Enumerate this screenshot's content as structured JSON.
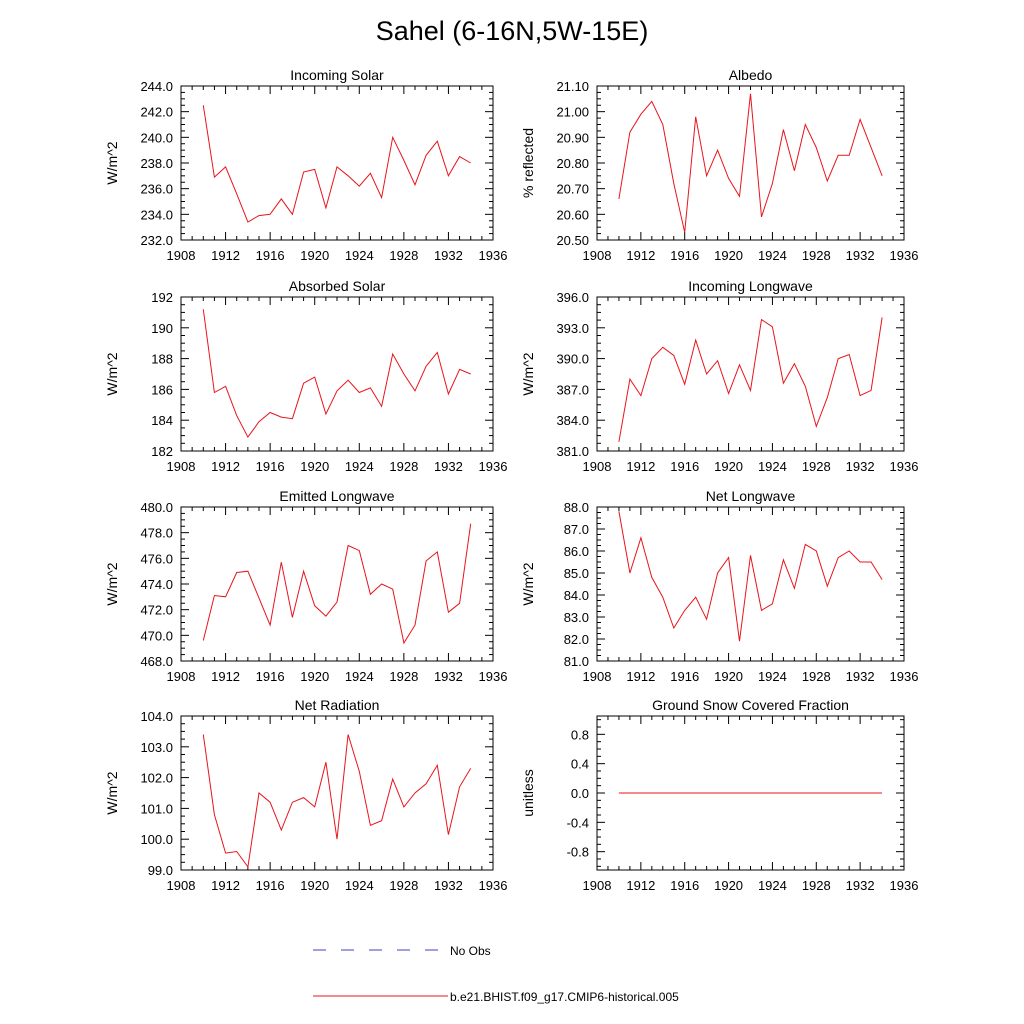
{
  "title": "Sahel (6-16N,5W-15E)",
  "colors": {
    "model": "#e8141c",
    "obs": "#4040c0",
    "axis": "#000000"
  },
  "legend": {
    "obs_label": "No Obs",
    "model_label": "b.e21.BHIST.f09_g17.CMIP6-historical.005"
  },
  "chart_data": [
    {
      "type": "line",
      "title": "Incoming Solar",
      "xlabel": "",
      "ylabel": "W/m^2",
      "xlim": [
        1908,
        1936
      ],
      "ylim": [
        232,
        244
      ],
      "xticks": [
        "1908",
        "1912",
        "1916",
        "1920",
        "1924",
        "1928",
        "1932",
        "1936"
      ],
      "yticks": [
        "232.0",
        "234.0",
        "236.0",
        "238.0",
        "240.0",
        "242.0",
        "244.0"
      ],
      "series": [
        {
          "name": "b.e21.BHIST.f09_g17.CMIP6-historical.005",
          "x": [
            1910,
            1911,
            1912,
            1913,
            1914,
            1915,
            1916,
            1917,
            1918,
            1919,
            1920,
            1921,
            1922,
            1923,
            1924,
            1925,
            1926,
            1927,
            1928,
            1929,
            1930,
            1931,
            1932,
            1933,
            1934
          ],
          "values": [
            242.5,
            236.9,
            237.7,
            235.6,
            233.4,
            233.9,
            234.0,
            235.2,
            234.0,
            237.3,
            237.5,
            234.5,
            237.7,
            237.0,
            236.2,
            237.2,
            235.3,
            240.0,
            238.2,
            236.3,
            238.6,
            239.7,
            237.0,
            238.5,
            238.0
          ]
        }
      ]
    },
    {
      "type": "line",
      "title": "Albedo",
      "xlabel": "",
      "ylabel": "% reflected",
      "xlim": [
        1908,
        1936
      ],
      "ylim": [
        20.5,
        21.1
      ],
      "xticks": [
        "1908",
        "1912",
        "1916",
        "1920",
        "1924",
        "1928",
        "1932",
        "1936"
      ],
      "yticks": [
        "20.50",
        "20.60",
        "20.70",
        "20.80",
        "20.90",
        "21.00",
        "21.10"
      ],
      "series": [
        {
          "name": "b.e21.BHIST.f09_g17.CMIP6-historical.005",
          "x": [
            1910,
            1911,
            1912,
            1913,
            1914,
            1915,
            1916,
            1917,
            1918,
            1919,
            1920,
            1921,
            1922,
            1923,
            1924,
            1925,
            1926,
            1927,
            1928,
            1929,
            1930,
            1931,
            1932,
            1933,
            1934
          ],
          "values": [
            20.66,
            20.92,
            20.99,
            21.04,
            20.95,
            20.72,
            20.53,
            20.98,
            20.75,
            20.85,
            20.74,
            20.67,
            21.07,
            20.59,
            20.72,
            20.93,
            20.77,
            20.95,
            20.86,
            20.73,
            20.83,
            20.83,
            20.97,
            20.86,
            20.75
          ]
        }
      ]
    },
    {
      "type": "line",
      "title": "Absorbed Solar",
      "xlabel": "",
      "ylabel": "W/m^2",
      "xlim": [
        1908,
        1936
      ],
      "ylim": [
        182,
        192
      ],
      "xticks": [
        "1908",
        "1912",
        "1916",
        "1920",
        "1924",
        "1928",
        "1932",
        "1936"
      ],
      "yticks": [
        "182",
        "184",
        "186",
        "188",
        "190",
        "192"
      ],
      "series": [
        {
          "name": "b.e21.BHIST.f09_g17.CMIP6-historical.005",
          "x": [
            1910,
            1911,
            1912,
            1913,
            1914,
            1915,
            1916,
            1917,
            1918,
            1919,
            1920,
            1921,
            1922,
            1923,
            1924,
            1925,
            1926,
            1927,
            1928,
            1929,
            1930,
            1931,
            1932,
            1933,
            1934
          ],
          "values": [
            191.2,
            185.8,
            186.2,
            184.3,
            182.9,
            183.9,
            184.5,
            184.2,
            184.1,
            186.4,
            186.8,
            184.4,
            185.9,
            186.6,
            185.8,
            186.1,
            184.9,
            188.3,
            187.0,
            185.9,
            187.5,
            188.4,
            185.7,
            187.3,
            187.0
          ]
        }
      ]
    },
    {
      "type": "line",
      "title": "Incoming Longwave",
      "xlabel": "",
      "ylabel": "W/m^2",
      "xlim": [
        1908,
        1936
      ],
      "ylim": [
        381,
        396
      ],
      "xticks": [
        "1908",
        "1912",
        "1916",
        "1920",
        "1924",
        "1928",
        "1932",
        "1936"
      ],
      "yticks": [
        "381.0",
        "384.0",
        "387.0",
        "390.0",
        "393.0",
        "396.0"
      ],
      "series": [
        {
          "name": "b.e21.BHIST.f09_g17.CMIP6-historical.005",
          "x": [
            1910,
            1911,
            1912,
            1913,
            1914,
            1915,
            1916,
            1917,
            1918,
            1919,
            1920,
            1921,
            1922,
            1923,
            1924,
            1925,
            1926,
            1927,
            1928,
            1929,
            1930,
            1931,
            1932,
            1933,
            1934
          ],
          "values": [
            381.9,
            388.0,
            386.4,
            390.0,
            391.1,
            390.3,
            387.5,
            391.8,
            388.5,
            389.8,
            386.6,
            389.4,
            386.9,
            393.8,
            393.1,
            387.6,
            389.5,
            387.3,
            383.4,
            386.2,
            390.0,
            390.4,
            386.4,
            386.9,
            394.0
          ]
        }
      ]
    },
    {
      "type": "line",
      "title": "Emitted Longwave",
      "xlabel": "",
      "ylabel": "W/m^2",
      "xlim": [
        1908,
        1936
      ],
      "ylim": [
        468,
        480
      ],
      "xticks": [
        "1908",
        "1912",
        "1916",
        "1920",
        "1924",
        "1928",
        "1932",
        "1936"
      ],
      "yticks": [
        "468.0",
        "470.0",
        "472.0",
        "474.0",
        "476.0",
        "478.0",
        "480.0"
      ],
      "series": [
        {
          "name": "b.e21.BHIST.f09_g17.CMIP6-historical.005",
          "x": [
            1910,
            1911,
            1912,
            1913,
            1914,
            1915,
            1916,
            1917,
            1918,
            1919,
            1920,
            1921,
            1922,
            1923,
            1924,
            1925,
            1926,
            1927,
            1928,
            1929,
            1930,
            1931,
            1932,
            1933,
            1934
          ],
          "values": [
            469.6,
            473.1,
            473.0,
            474.9,
            475.0,
            472.9,
            470.8,
            475.7,
            471.4,
            475.0,
            472.3,
            471.5,
            472.6,
            477.0,
            476.6,
            473.2,
            474.0,
            473.6,
            469.4,
            470.8,
            475.8,
            476.5,
            471.8,
            472.5,
            478.7
          ]
        }
      ]
    },
    {
      "type": "line",
      "title": "Net Longwave",
      "xlabel": "",
      "ylabel": "W/m^2",
      "xlim": [
        1908,
        1936
      ],
      "ylim": [
        81,
        88
      ],
      "xticks": [
        "1908",
        "1912",
        "1916",
        "1920",
        "1924",
        "1928",
        "1932",
        "1936"
      ],
      "yticks": [
        "81.0",
        "82.0",
        "83.0",
        "84.0",
        "85.0",
        "86.0",
        "87.0",
        "88.0"
      ],
      "series": [
        {
          "name": "b.e21.BHIST.f09_g17.CMIP6-historical.005",
          "x": [
            1910,
            1911,
            1912,
            1913,
            1914,
            1915,
            1916,
            1917,
            1918,
            1919,
            1920,
            1921,
            1922,
            1923,
            1924,
            1925,
            1926,
            1927,
            1928,
            1929,
            1930,
            1931,
            1932,
            1933,
            1934
          ],
          "values": [
            87.8,
            85.0,
            86.6,
            84.8,
            83.9,
            82.5,
            83.3,
            83.9,
            82.9,
            85.0,
            85.7,
            81.9,
            85.8,
            83.3,
            83.6,
            85.6,
            84.3,
            86.3,
            86.0,
            84.4,
            85.7,
            86.0,
            85.5,
            85.5,
            84.7
          ]
        }
      ]
    },
    {
      "type": "line",
      "title": "Net Radiation",
      "xlabel": "",
      "ylabel": "W/m^2",
      "xlim": [
        1908,
        1936
      ],
      "ylim": [
        99,
        104
      ],
      "xticks": [
        "1908",
        "1912",
        "1916",
        "1920",
        "1924",
        "1928",
        "1932",
        "1936"
      ],
      "yticks": [
        "99.0",
        "100.0",
        "101.0",
        "102.0",
        "103.0",
        "104.0"
      ],
      "series": [
        {
          "name": "b.e21.BHIST.f09_g17.CMIP6-historical.005",
          "x": [
            1910,
            1911,
            1912,
            1913,
            1914,
            1915,
            1916,
            1917,
            1918,
            1919,
            1920,
            1921,
            1922,
            1923,
            1924,
            1925,
            1926,
            1927,
            1928,
            1929,
            1930,
            1931,
            1932,
            1933,
            1934
          ],
          "values": [
            103.4,
            100.8,
            99.55,
            99.6,
            99.1,
            101.5,
            101.2,
            100.3,
            101.2,
            101.35,
            101.05,
            102.5,
            100.0,
            103.4,
            102.2,
            100.45,
            100.6,
            101.95,
            101.05,
            101.5,
            101.8,
            102.4,
            100.15,
            101.7,
            102.3
          ]
        }
      ]
    },
    {
      "type": "line",
      "title": "Ground Snow Covered Fraction",
      "xlabel": "",
      "ylabel": "unitless",
      "xlim": [
        1908,
        1936
      ],
      "ylim": [
        -1.05,
        1.05
      ],
      "xticks": [
        "1908",
        "1912",
        "1916",
        "1920",
        "1924",
        "1928",
        "1932",
        "1936"
      ],
      "yticks": [
        "-0.8",
        "-0.4",
        "0.0",
        "0.4",
        "0.8"
      ],
      "series": [
        {
          "name": "b.e21.BHIST.f09_g17.CMIP6-historical.005",
          "x": [
            1910,
            1911,
            1912,
            1913,
            1914,
            1915,
            1916,
            1917,
            1918,
            1919,
            1920,
            1921,
            1922,
            1923,
            1924,
            1925,
            1926,
            1927,
            1928,
            1929,
            1930,
            1931,
            1932,
            1933,
            1934
          ],
          "values": [
            0,
            0,
            0,
            0,
            0,
            0,
            0,
            0,
            0,
            0,
            0,
            0,
            0,
            0,
            0,
            0,
            0,
            0,
            0,
            0,
            0,
            0,
            0,
            0,
            0
          ]
        }
      ]
    }
  ]
}
